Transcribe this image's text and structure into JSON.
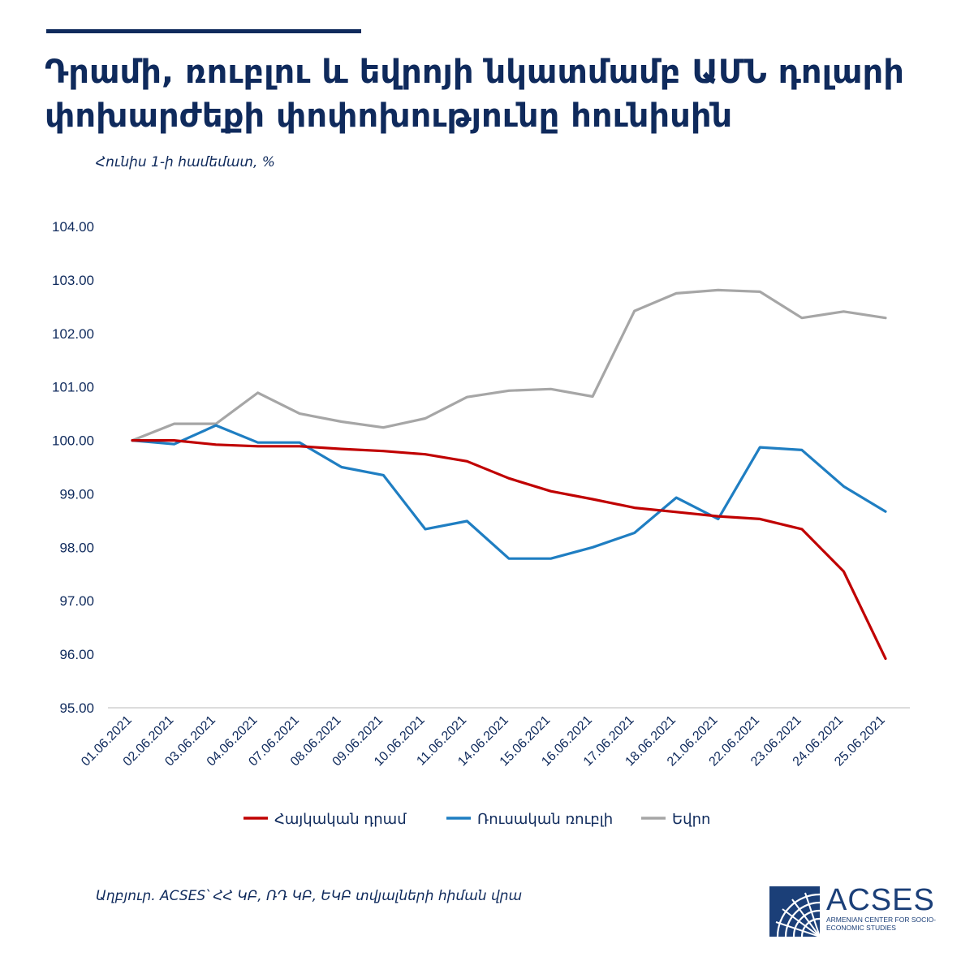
{
  "header": {
    "title": "Դրամի, ռուբլու և եվրոյի նկատմամբ ԱՄՆ դոլարի փոխարժեքի փոփոխությունը հունիսին",
    "subtitle": "Հունիս 1-ի համեմատ, %"
  },
  "footer": {
    "source": "Աղբյուր. ACSES՝ ՀՀ ԿԲ, ՌԴ ԿԲ, ԵԿԲ տվյալների հիման վրա"
  },
  "logo": {
    "name": "ACSES",
    "subtitle": "ARMENIAN CENTER FOR SOCIO-ECONOMIC STUDIES"
  },
  "chart_data": {
    "type": "line",
    "x": [
      "01.06.2021",
      "02.06.2021",
      "03.06.2021",
      "04.06.2021",
      "07.06.2021",
      "08.06.2021",
      "09.06.2021",
      "10.06.2021",
      "11.06.2021",
      "14.06.2021",
      "15.06.2021",
      "16.06.2021",
      "17.06.2021",
      "18.06.2021",
      "21.06.2021",
      "22.06.2021",
      "23.06.2021",
      "24.06.2021",
      "25.06.2021"
    ],
    "y_ticks": [
      "104.00",
      "103.00",
      "102.00",
      "101.00",
      "100.00",
      "99.00",
      "98.00",
      "97.00",
      "96.00",
      "95.00"
    ],
    "ylim": [
      95,
      104
    ],
    "grid": false,
    "legend_position": "bottom",
    "series": [
      {
        "name": "Հայկական դրամ",
        "color": "#c00000",
        "values": [
          100.0,
          100.0,
          99.92,
          99.89,
          99.89,
          99.84,
          99.8,
          99.74,
          99.61,
          99.29,
          99.05,
          98.9,
          98.74,
          98.66,
          98.58,
          98.53,
          98.34,
          97.55,
          95.92
        ]
      },
      {
        "name": "Ռուսական ռուբլի",
        "color": "#1f7ec2",
        "values": [
          100.0,
          99.93,
          100.28,
          99.96,
          99.96,
          99.5,
          99.35,
          98.34,
          98.49,
          97.79,
          97.79,
          98.0,
          98.27,
          98.93,
          98.53,
          99.87,
          99.82,
          99.14,
          98.67
        ]
      },
      {
        "name": "Եվրո",
        "color": "#a6a6a6",
        "values": [
          100.0,
          100.31,
          100.31,
          100.89,
          100.5,
          100.35,
          100.24,
          100.41,
          100.81,
          100.93,
          100.96,
          100.82,
          102.42,
          102.75,
          102.81,
          102.78,
          102.29,
          102.41,
          102.29
        ]
      }
    ]
  }
}
